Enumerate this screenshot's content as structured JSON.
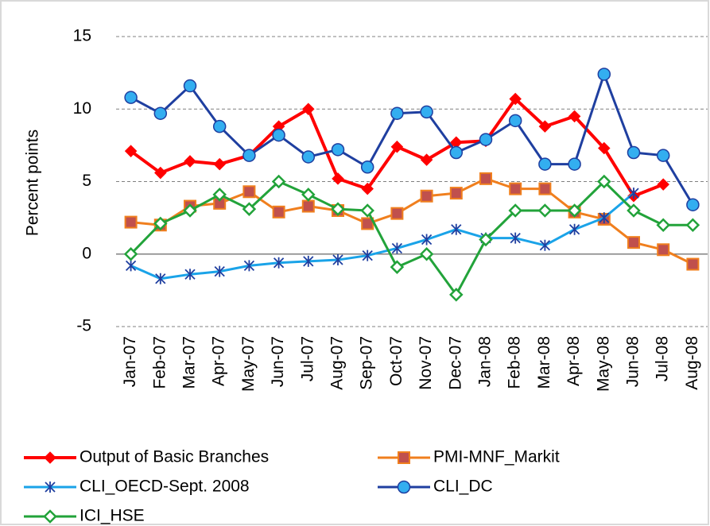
{
  "chart_data": {
    "type": "line",
    "y_label": "Percent  points",
    "categories": [
      "Jan-07",
      "Feb-07",
      "Mar-07",
      "Apr-07",
      "May-07",
      "Jun-07",
      "Jul-07",
      "Aug-07",
      "Sep-07",
      "Oct-07",
      "Nov-07",
      "Dec-07",
      "Jan-08",
      "Feb-08",
      "Mar-08",
      "Apr-08",
      "May-08",
      "Jun-08",
      "Jul-08",
      "Aug-08"
    ],
    "series": [
      {
        "name": "Output of Basic Branches",
        "color": "#ff0000",
        "marker": "diamond",
        "values": [
          7.1,
          5.6,
          6.4,
          6.2,
          6.8,
          8.8,
          10.0,
          5.2,
          4.5,
          7.4,
          6.5,
          7.7,
          7.8,
          10.7,
          8.8,
          9.5,
          7.3,
          4.0,
          4.8,
          null
        ]
      },
      {
        "name": "PMI-MNF_Markit",
        "color": "#f07f1e",
        "marker": "square",
        "values": [
          2.2,
          2.0,
          3.3,
          3.5,
          4.3,
          2.9,
          3.3,
          3.0,
          2.1,
          2.8,
          4.0,
          4.2,
          5.2,
          4.5,
          4.5,
          2.9,
          2.4,
          0.8,
          0.3,
          -0.7
        ]
      },
      {
        "name": "CLI_OECD-Sept. 2008",
        "color": "#1aa3e8",
        "marker": "star",
        "values": [
          -0.8,
          -1.7,
          -1.4,
          -1.2,
          -0.8,
          -0.6,
          -0.5,
          -0.4,
          -0.1,
          0.4,
          1.0,
          1.7,
          1.1,
          1.1,
          0.6,
          1.7,
          2.5,
          4.2,
          null,
          null
        ]
      },
      {
        "name": "CLI_DC",
        "color": "#1f3fa0",
        "marker": "circle",
        "values": [
          10.8,
          9.7,
          11.6,
          8.8,
          6.8,
          8.2,
          6.7,
          7.2,
          6.0,
          9.7,
          9.8,
          7.0,
          7.9,
          9.2,
          6.2,
          6.2,
          12.4,
          7.0,
          6.8,
          3.4
        ]
      },
      {
        "name": "ICI_HSE",
        "color": "#22a33a",
        "marker": "hollow-diamond",
        "values": [
          0.0,
          2.1,
          3.0,
          4.1,
          3.1,
          5.0,
          4.1,
          3.1,
          3.0,
          -0.9,
          0.0,
          -2.8,
          1.0,
          3.0,
          3.0,
          3.0,
          5.0,
          3.0,
          2.0,
          2.0
        ]
      }
    ],
    "ylim": [
      -5,
      15
    ],
    "yticks": [
      -5,
      0,
      5,
      10,
      15
    ],
    "grid": true,
    "legend": "bottom"
  }
}
